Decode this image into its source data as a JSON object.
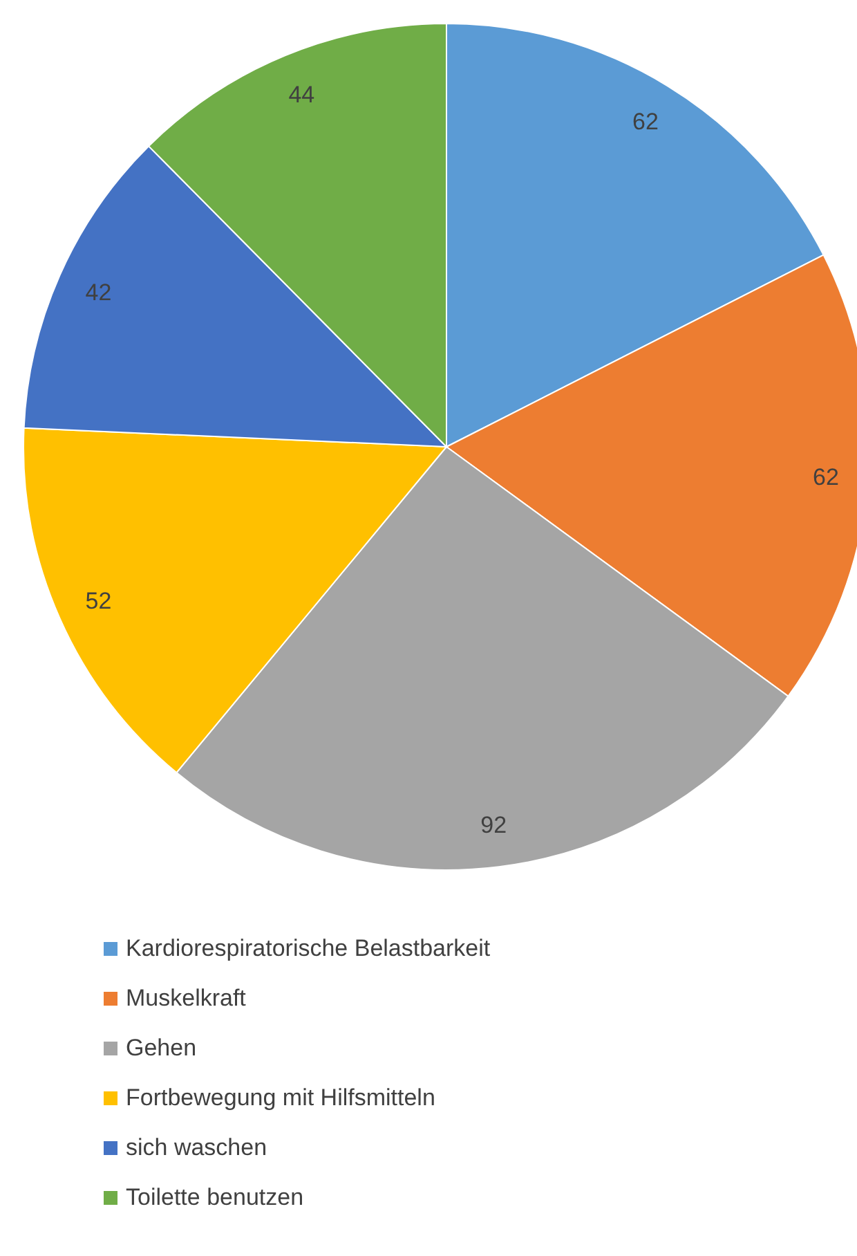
{
  "chart_data": {
    "type": "pie",
    "categories": [
      "Kardiorespiratorische Belastbarkeit",
      "Muskelkraft",
      "Gehen",
      "Fortbewegung mit Hilfsmitteln",
      "sich waschen",
      "Toilette benutzen"
    ],
    "values": [
      62,
      62,
      92,
      52,
      42,
      44
    ],
    "colors": [
      "#5b9bd5",
      "#ed7d31",
      "#a5a5a5",
      "#ffc000",
      "#4472c4",
      "#70ad47"
    ],
    "data_labels": true,
    "legend": "bottom"
  }
}
